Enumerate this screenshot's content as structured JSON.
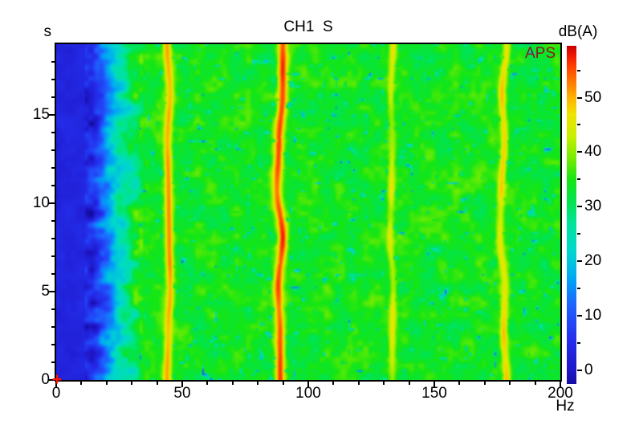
{
  "window": {
    "background": "#FFFFFF"
  },
  "title": "CH1  S",
  "overlay_label": "APS",
  "colorbar_title": "dB(A)",
  "x_axis": {
    "unit": "Hz",
    "min": 0,
    "max": 200,
    "major_ticks": [
      0,
      50,
      100,
      150,
      200
    ],
    "minor_tick_step": 10
  },
  "y_axis": {
    "unit": "s",
    "min": 0,
    "max": 19,
    "major_ticks": [
      0,
      5,
      10,
      15
    ],
    "minor_tick_step": 1
  },
  "colorbar": {
    "min": -2.5,
    "max": 59.5,
    "major_ticks": [
      0,
      10,
      20,
      30,
      40,
      50
    ],
    "minor_ticks": [
      5,
      15,
      25,
      35,
      45,
      55
    ]
  },
  "colors": {
    "axis": "#000000",
    "title_text": "#000000",
    "aps_text": "#8B1A1A",
    "origin_marker": "#FF1400"
  },
  "origin_marker": {
    "glyph": "+",
    "x_hz": 0,
    "y_s": 0
  },
  "chart_data": {
    "type": "heatmap",
    "subtype": "spectrogram-waterfall-APS",
    "title": "CH1  S",
    "annotation": "APS",
    "xlabel": "Hz",
    "ylabel": "s",
    "zlabel": "dB(A)",
    "xlim": [
      0,
      200
    ],
    "ylim": [
      0,
      19
    ],
    "zlim": [
      -2.5,
      59.5
    ],
    "grid": false,
    "legend_position": "colorbar-right",
    "background_level_db": 34.2,
    "background_noise_amplitude_db": 4.0,
    "low_cut": {
      "floor_db": 3.5,
      "solid_below_hz": 14,
      "mid_hz": 23,
      "mid_db": 21,
      "transition_to_hz": 33
    },
    "speckle": {
      "threshold": 0.2,
      "dot_depth_db": 24
    },
    "tones": [
      {
        "freq_hz": 44.3,
        "peak_db": 51.0,
        "sigma_hz": 1.15,
        "wiggle_hz": 0.8,
        "am_depth": 0.04,
        "seed": 11,
        "low_time_boost_db": 1
      },
      {
        "freq_hz": 88.6,
        "peak_db": 55.5,
        "sigma_hz": 1.35,
        "wiggle_hz": 1.4,
        "am_depth": 0.05,
        "seed": 23,
        "low_time_boost_db": 2
      },
      {
        "freq_hz": 132.9,
        "peak_db": 44.5,
        "sigma_hz": 1.0,
        "wiggle_hz": 1.0,
        "am_depth": 0.1,
        "seed": 37,
        "low_time_boost_db": 0
      },
      {
        "freq_hz": 177.2,
        "peak_db": 46.5,
        "sigma_hz": 1.1,
        "wiggle_hz": 1.9,
        "am_depth": 0.09,
        "seed": 51,
        "low_time_boost_db": 1
      }
    ],
    "colormap_stops": [
      [
        -2.5,
        "#140CA0"
      ],
      [
        0,
        "#1F17C8"
      ],
      [
        6,
        "#2430EE"
      ],
      [
        12,
        "#1E64FF"
      ],
      [
        17,
        "#00A8F5"
      ],
      [
        22,
        "#00D8CD"
      ],
      [
        27,
        "#00E49B"
      ],
      [
        31,
        "#00E450"
      ],
      [
        35,
        "#15E615"
      ],
      [
        39,
        "#78EC00"
      ],
      [
        43,
        "#C8F000"
      ],
      [
        47,
        "#F0E400"
      ],
      [
        50,
        "#FFB400"
      ],
      [
        53,
        "#FF7800"
      ],
      [
        56,
        "#FF3C00"
      ],
      [
        58,
        "#EC1400"
      ],
      [
        59.5,
        "#C80000"
      ]
    ]
  }
}
